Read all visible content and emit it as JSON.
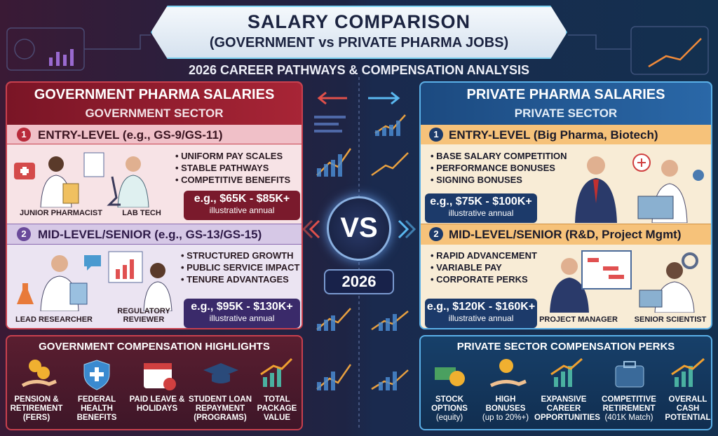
{
  "header": {
    "title": "SALARY COMPARISON",
    "subtitle": "(GOVERNMENT vs PRIVATE PHARMA JOBS)",
    "tagline": "2026 CAREER PATHWAYS & COMPENSATION ANALYSIS"
  },
  "government": {
    "title": "GOVERNMENT PHARMA SALARIES",
    "sector": "GOVERNMENT SECTOR",
    "entry": {
      "number": "1",
      "title": "ENTRY-LEVEL (e.g., GS-9/GS-11)",
      "bullets": [
        "UNIFORM PAY SCALES",
        "STABLE PATHWAYS",
        "COMPETITIVE BENEFITS"
      ],
      "range": "e.g., $65K - $85K+",
      "note": "illustrative annual",
      "roles": [
        "JUNIOR PHARMACIST",
        "LAB TECH"
      ]
    },
    "mid": {
      "number": "2",
      "title": "MID-LEVEL/SENIOR (e.g., GS-13/GS-15)",
      "bullets": [
        "STRUCTURED GROWTH",
        "PUBLIC SERVICE IMPACT",
        "TENURE ADVANTAGES"
      ],
      "range": "e.g., $95K - $130K+",
      "note": "illustrative annual",
      "roles": [
        "LEAD RESEARCHER",
        "REGULATORY REVIEWER"
      ]
    },
    "highlights": {
      "title": "GOVERNMENT COMPENSATION HIGHLIGHTS",
      "items": [
        {
          "label": "PENSION & RETIREMENT (FERS)"
        },
        {
          "label": "FEDERAL HEALTH BENEFITS"
        },
        {
          "label": "PAID LEAVE & HOLIDAYS"
        },
        {
          "label": "STUDENT LOAN REPAYMENT (PROGRAMS)"
        },
        {
          "label": "TOTAL PACKAGE VALUE"
        }
      ]
    }
  },
  "center": {
    "vs": "VS",
    "year": "2026"
  },
  "private": {
    "title": "PRIVATE PHARMA SALARIES",
    "sector": "PRIVATE SECTOR",
    "entry": {
      "number": "1",
      "title": "ENTRY-LEVEL (Big Pharma, Biotech)",
      "bullets": [
        "BASE SALARY COMPETITION",
        "PERFORMANCE BONUSES",
        "SIGNING BONUSES"
      ],
      "range": "e.g., $75K - $100K+",
      "note": "illustrative annual"
    },
    "mid": {
      "number": "2",
      "title": "MID-LEVEL/SENIOR (R&D, Project Mgmt)",
      "bullets": [
        "RAPID ADVANCEMENT",
        "VARIABLE PAY",
        "CORPORATE PERKS"
      ],
      "range": "e.g., $120K - $160K+",
      "note": "illustrative annual",
      "roles": [
        "PROJECT MANAGER",
        "SENIOR SCIENTIST"
      ]
    },
    "perks": {
      "title": "PRIVATE SECTOR COMPENSATION PERKS",
      "items": [
        {
          "label": "STOCK OPTIONS",
          "sub": "(equity)"
        },
        {
          "label": "HIGH BONUSES",
          "sub": "(up to 20%+)"
        },
        {
          "label": "EXPANSIVE CAREER OPPORTUNITIES"
        },
        {
          "label": "COMPETITIVE RETIREMENT",
          "sub": "(401K Match)"
        },
        {
          "label": "OVERALL CASH POTENTIAL"
        }
      ]
    }
  }
}
